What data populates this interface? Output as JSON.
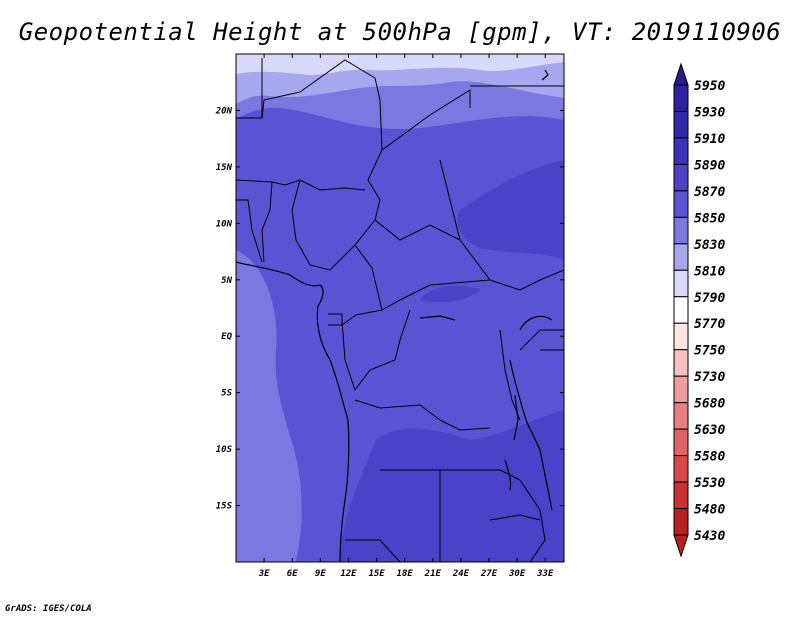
{
  "title": "Geopotential Height at 500hPa [gpm], VT: 2019110906",
  "credit": "GrADS: IGES/COLA",
  "map": {
    "lon_range": [
      0,
      35
    ],
    "lat_range": [
      -20,
      25
    ],
    "lon_ticks": [
      {
        "lon": 3,
        "label": "3E"
      },
      {
        "lon": 6,
        "label": "6E"
      },
      {
        "lon": 9,
        "label": "9E"
      },
      {
        "lon": 12,
        "label": "12E"
      },
      {
        "lon": 15,
        "label": "15E"
      },
      {
        "lon": 18,
        "label": "18E"
      },
      {
        "lon": 21,
        "label": "21E"
      },
      {
        "lon": 24,
        "label": "24E"
      },
      {
        "lon": 27,
        "label": "27E"
      },
      {
        "lon": 30,
        "label": "30E"
      },
      {
        "lon": 33,
        "label": "33E"
      }
    ],
    "lat_ticks": [
      {
        "lat": 20,
        "label": "20N"
      },
      {
        "lat": 15,
        "label": "15N"
      },
      {
        "lat": 10,
        "label": "10N"
      },
      {
        "lat": 5,
        "label": "5N"
      },
      {
        "lat": 0,
        "label": "EQ"
      },
      {
        "lat": -5,
        "label": "5S"
      },
      {
        "lat": -10,
        "label": "10S"
      },
      {
        "lat": -15,
        "label": "15S"
      }
    ]
  },
  "colorbar": {
    "levels": [
      {
        "label": "5950",
        "color": "#2a1a8c"
      },
      {
        "label": "5930",
        "color": "#2e22a0"
      },
      {
        "label": "5910",
        "color": "#3428aa"
      },
      {
        "label": "5890",
        "color": "#3c32b8"
      },
      {
        "label": "5870",
        "color": "#4a42c8"
      },
      {
        "label": "5850",
        "color": "#5a54d4"
      },
      {
        "label": "5830",
        "color": "#7c78e2"
      },
      {
        "label": "5810",
        "color": "#a8a6ee"
      },
      {
        "label": "5790",
        "color": "#d8d8f8"
      },
      {
        "label": "5770",
        "color": "#ffffff"
      },
      {
        "label": "5750",
        "color": "#fde4e4"
      },
      {
        "label": "5730",
        "color": "#f8c0c0"
      },
      {
        "label": "5680",
        "color": "#f09c9c"
      },
      {
        "label": "5630",
        "color": "#e88080"
      },
      {
        "label": "5580",
        "color": "#e06464"
      },
      {
        "label": "5530",
        "color": "#d84848"
      },
      {
        "label": "5480",
        "color": "#cc3030"
      },
      {
        "label": "5430",
        "color": "#b82020"
      }
    ]
  }
}
